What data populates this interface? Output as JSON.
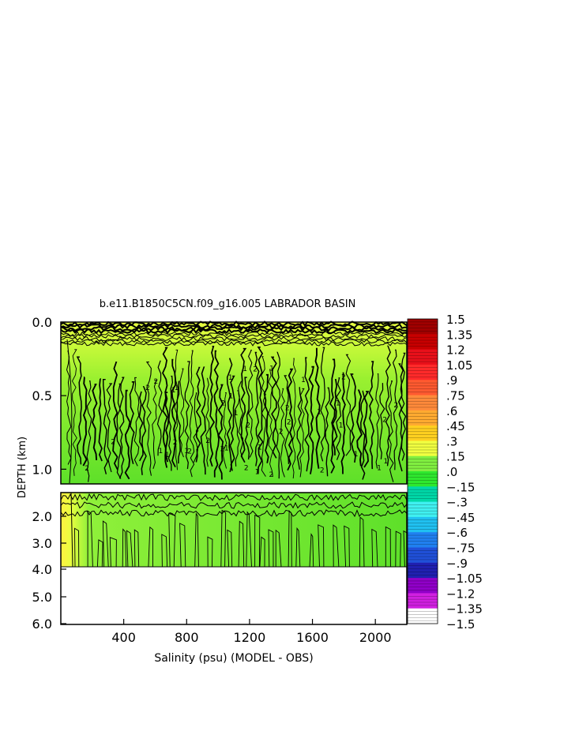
{
  "chart_data": {
    "type": "heatmap",
    "title": "b.e11.B1850C5CN.f09_g16.005 LABRADOR BASIN",
    "xlabel": "Salinity (psu) (MODEL - OBS)",
    "ylabel": "DEPTH (km)",
    "xlim": [
      0,
      2200
    ],
    "x_ticks": [
      "400",
      "800",
      "1200",
      "1600",
      "2000"
    ],
    "x_tick_values": [
      400,
      800,
      1200,
      1600,
      2000
    ],
    "upper_panel": {
      "ylim": [
        0.0,
        1.1
      ],
      "y_ticks": [
        "0.0",
        "0.5",
        "1.0"
      ],
      "y_tick_values": [
        0.0,
        0.5,
        1.0
      ]
    },
    "lower_panel": {
      "ylim": [
        1.1,
        6.0
      ],
      "data_bottom": 4.0,
      "y_ticks": [
        "2.0",
        "3.0",
        "4.0",
        "5.0",
        "6.0"
      ],
      "y_tick_values": [
        2.0,
        3.0,
        4.0,
        5.0,
        6.0
      ]
    },
    "colorbar": {
      "min": -1.5,
      "max": 1.5,
      "labels": [
        "1.5",
        "1.35",
        "1.2",
        "1.05",
        ".9",
        ".75",
        ".6",
        ".45",
        ".3",
        ".15",
        ".0",
        "-.15",
        "-.3",
        "-.45",
        "-.6",
        "-.75",
        "-.9",
        "-1.05",
        "-1.2",
        "-1.35",
        "-1.5"
      ],
      "colors": [
        "#a00000",
        "#c80000",
        "#e8101a",
        "#ff2a2a",
        "#ff5a30",
        "#ff8a3a",
        "#ffaa30",
        "#ffd020",
        "#f0ff40",
        "#80ee40",
        "#2ee82e",
        "#00d8a8",
        "#40f0f0",
        "#20c0f0",
        "#2080f0",
        "#2050d8",
        "#2020b0",
        "#9000c8",
        "#d020e0",
        "#ffffff",
        "#888888"
      ]
    },
    "dominant_value_range": [
      0.0,
      0.3
    ],
    "contour_labels": [
      "2",
      "1",
      "0"
    ]
  }
}
